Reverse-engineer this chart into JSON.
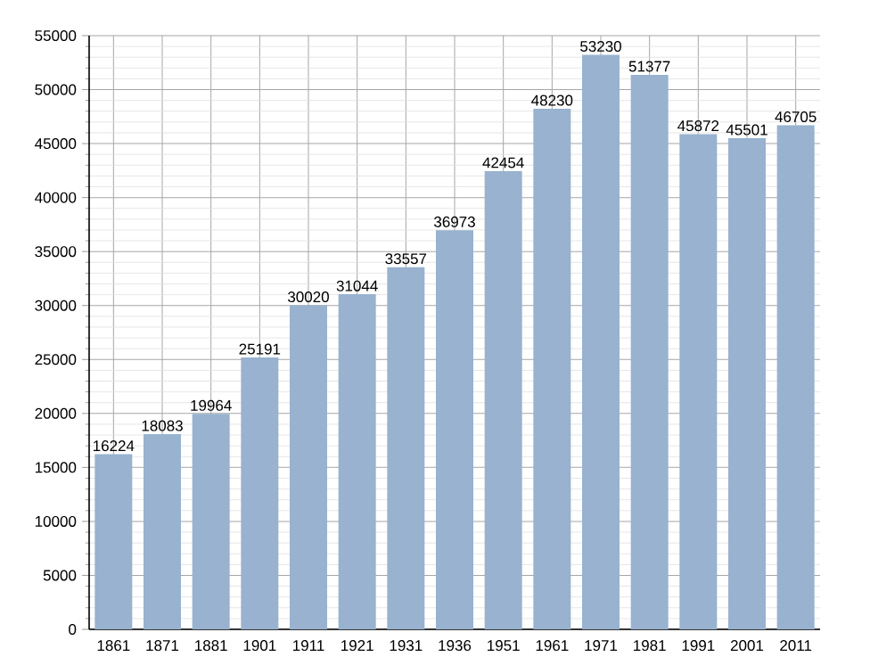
{
  "chart_data": {
    "type": "bar",
    "categories": [
      "1861",
      "1871",
      "1881",
      "1901",
      "1911",
      "1921",
      "1931",
      "1936",
      "1951",
      "1961",
      "1971",
      "1981",
      "1991",
      "2001",
      "2011"
    ],
    "values": [
      16224,
      18083,
      19964,
      25191,
      30020,
      31044,
      33557,
      36973,
      42454,
      48230,
      53230,
      51377,
      45872,
      45501,
      46705
    ],
    "color": "#98b2cf",
    "ylim": [
      0,
      55000
    ],
    "yticks": [
      0,
      5000,
      10000,
      15000,
      20000,
      25000,
      30000,
      35000,
      40000,
      45000,
      50000,
      55000
    ],
    "grid": true,
    "data_labels": true
  }
}
